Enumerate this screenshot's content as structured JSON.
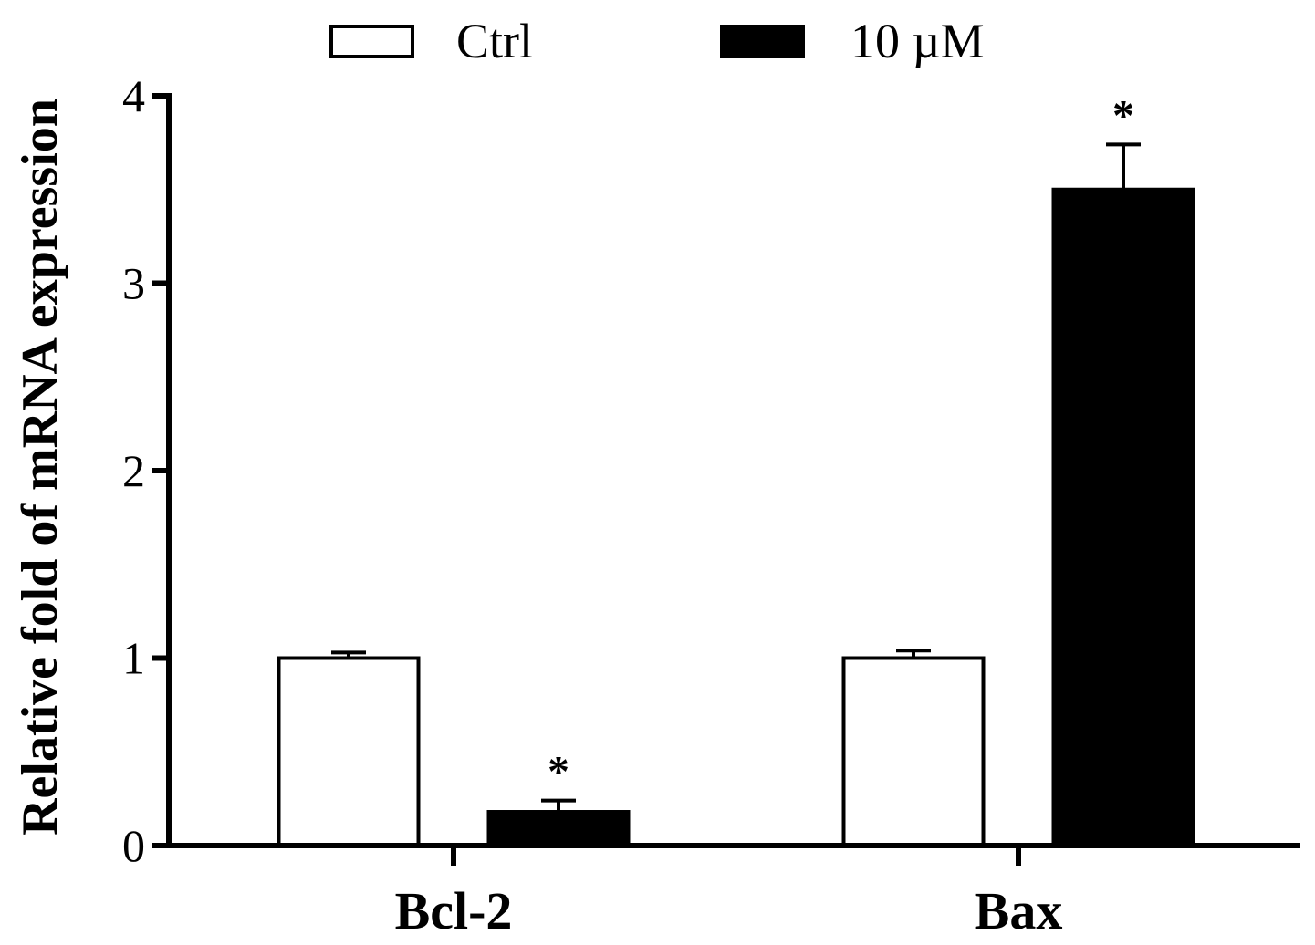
{
  "chart_data": {
    "type": "bar",
    "title": "",
    "xlabel": "",
    "ylabel": "Relative fold of mRNA expression",
    "ylim": [
      0,
      4
    ],
    "yticks": [
      "0",
      "1",
      "2",
      "3",
      "4"
    ],
    "grid": false,
    "legend_position": "top-center",
    "categories": [
      "Bcl-2",
      "Bax"
    ],
    "series": [
      {
        "name": "Ctrl",
        "fill": "#ffffff",
        "values": [
          1.0,
          1.0
        ],
        "errors": [
          0.03,
          0.04
        ],
        "annotations": [
          "",
          ""
        ]
      },
      {
        "name": "10 µM",
        "fill": "#000000",
        "values": [
          0.18,
          3.5
        ],
        "errors": [
          0.06,
          0.24
        ],
        "annotations": [
          "*",
          "*"
        ]
      }
    ]
  }
}
